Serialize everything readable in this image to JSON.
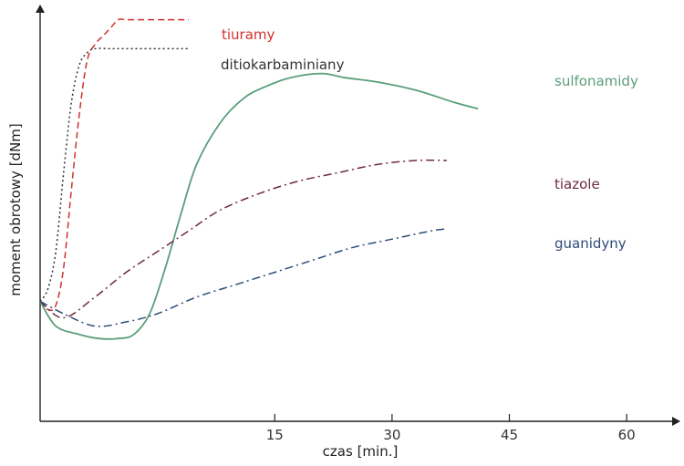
{
  "chart_data": {
    "type": "line",
    "xlabel": "czas [min.]",
    "ylabel": "moment obrotowy [dNm]",
    "xlim": [
      -15,
      65
    ],
    "ylim": [
      0,
      100
    ],
    "grid": false,
    "y_ticks": false,
    "x_ticks": [
      15,
      30,
      45,
      60
    ],
    "x_tick_labels": [
      "15",
      "30",
      "45",
      "60"
    ],
    "series": [
      {
        "name": "tiuramy",
        "color": "#d0312d",
        "dash": "dashed",
        "points": [
          [
            -15,
            29
          ],
          [
            -14,
            27
          ],
          [
            -13,
            28
          ],
          [
            -12,
            37
          ],
          [
            -11,
            56
          ],
          [
            -10,
            74
          ],
          [
            -9,
            87
          ],
          [
            -8,
            91
          ],
          [
            -7,
            93
          ],
          [
            -6,
            95
          ],
          [
            -5,
            97
          ],
          [
            -4,
            97
          ],
          [
            -2,
            97
          ],
          [
            1,
            97
          ],
          [
            4,
            97
          ]
        ]
      },
      {
        "name": "ditiokarbaminiany",
        "color": "#333333",
        "dash": "dotted",
        "points": [
          [
            -15,
            29
          ],
          [
            -14,
            32
          ],
          [
            -13,
            41
          ],
          [
            -12,
            60
          ],
          [
            -11,
            77
          ],
          [
            -10,
            86
          ],
          [
            -9,
            89
          ],
          [
            -8,
            90
          ],
          [
            -6,
            90
          ],
          [
            -4,
            90
          ],
          [
            0,
            90
          ],
          [
            4,
            90
          ]
        ]
      },
      {
        "name": "sulfonamidy",
        "color": "#5a9e7a",
        "dash": "solid",
        "points": [
          [
            -15,
            29
          ],
          [
            -13,
            23
          ],
          [
            -10,
            21
          ],
          [
            -7.5,
            20
          ],
          [
            -5,
            20
          ],
          [
            -3,
            21
          ],
          [
            -1,
            26
          ],
          [
            1,
            37
          ],
          [
            3,
            50
          ],
          [
            5,
            62
          ],
          [
            8,
            72
          ],
          [
            11,
            78
          ],
          [
            14,
            81
          ],
          [
            17,
            83
          ],
          [
            21,
            84
          ],
          [
            24,
            83
          ],
          [
            28,
            82
          ],
          [
            33,
            80
          ],
          [
            38,
            77
          ],
          [
            41,
            75.5
          ]
        ]
      },
      {
        "name": "tiazole",
        "color": "#6e2a3e",
        "dash": "dashdot",
        "points": [
          [
            -15,
            29
          ],
          [
            -12,
            25
          ],
          [
            -8,
            30
          ],
          [
            -4,
            36
          ],
          [
            0,
            41
          ],
          [
            4,
            46
          ],
          [
            8,
            51
          ],
          [
            13,
            55
          ],
          [
            18,
            58
          ],
          [
            23,
            60
          ],
          [
            28,
            62
          ],
          [
            33,
            63
          ],
          [
            37,
            63
          ]
        ]
      },
      {
        "name": "guanidyny",
        "color": "#2d4d78",
        "dash": "dashdot",
        "points": [
          [
            -15,
            29
          ],
          [
            -12,
            26
          ],
          [
            -8,
            23
          ],
          [
            -4,
            24
          ],
          [
            0,
            26
          ],
          [
            5,
            30
          ],
          [
            10,
            33
          ],
          [
            15,
            36
          ],
          [
            20,
            39
          ],
          [
            25,
            42
          ],
          [
            30,
            44
          ],
          [
            35,
            46
          ],
          [
            37,
            46.5
          ]
        ]
      }
    ],
    "labels": [
      {
        "text": "tiuramy",
        "color": "#d0312d"
      },
      {
        "text": "ditiokarbaminiany",
        "color": "#333333"
      },
      {
        "text": "sulfonamidy",
        "color": "#5a9e7a"
      },
      {
        "text": "tiazole",
        "color": "#6e2a3e"
      },
      {
        "text": "guanidyny",
        "color": "#2d4d78"
      }
    ]
  }
}
